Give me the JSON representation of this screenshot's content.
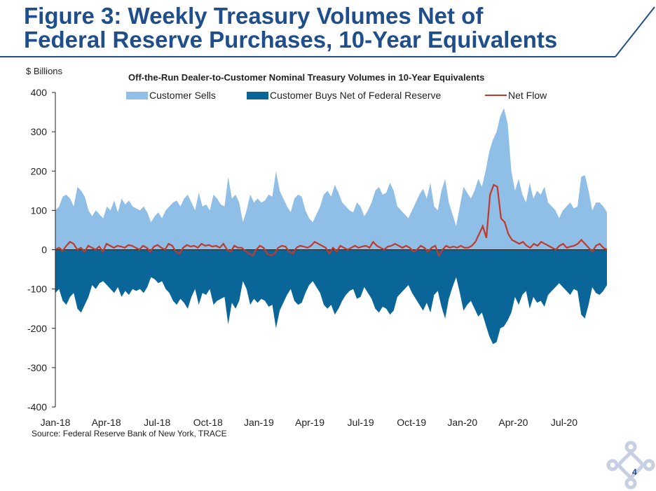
{
  "page": {
    "title_line1": "Figure 3: Weekly Treasury Volumes Net of",
    "title_line2": "Federal Reserve Purchases, 10-Year Equivalents",
    "source": "Source: Federal Reserve Bank of New York, TRACE",
    "page_number": "4",
    "colors": {
      "title": "#1f4e8c",
      "rule": "#1f4e8c"
    }
  },
  "chart_data": {
    "type": "area",
    "title": "Off-the-Run Dealer-to-Customer Nominal Treasury Volumes in 10-Year Equivalents",
    "ylabel": "$ Billions",
    "xlabel": "",
    "ylim": [
      -400,
      400
    ],
    "yticks": [
      400,
      300,
      200,
      100,
      0,
      -100,
      -200,
      -300,
      -400
    ],
    "ytick_labels": [
      "400",
      "300",
      "200",
      "100",
      "0",
      "-100",
      "-200",
      "-300",
      "-400"
    ],
    "xtick_labels": [
      "Jan-18",
      "Apr-18",
      "Jul-18",
      "Oct-18",
      "Jan-19",
      "Apr-19",
      "Jul-19",
      "Oct-19",
      "Jan-20",
      "Apr-20",
      "Jul-20"
    ],
    "grid": false,
    "legend_position": "top",
    "series": [
      {
        "name": "Customer Sells",
        "kind": "area",
        "color": "#8fbfe6",
        "values": [
          100,
          110,
          135,
          140,
          130,
          110,
          160,
          150,
          135,
          100,
          85,
          100,
          90,
          80,
          110,
          100,
          125,
          95,
          130,
          115,
          125,
          110,
          105,
          100,
          110,
          95,
          70,
          85,
          95,
          80,
          100,
          110,
          120,
          125,
          110,
          130,
          140,
          120,
          100,
          145,
          110,
          115,
          100,
          140,
          130,
          115,
          110,
          185,
          130,
          140,
          120,
          70,
          100,
          140,
          120,
          130,
          120,
          125,
          140,
          135,
          200,
          150,
          130,
          110,
          95,
          130,
          140,
          135,
          100,
          80,
          70,
          90,
          110,
          140,
          150,
          135,
          165,
          145,
          120,
          110,
          100,
          95,
          120,
          110,
          85,
          100,
          120,
          150,
          160,
          140,
          145,
          170,
          150,
          110,
          100,
          90,
          80,
          100,
          120,
          140,
          155,
          130,
          170,
          110,
          100,
          150,
          180,
          120,
          90,
          60,
          110,
          160,
          145,
          130,
          150,
          180,
          160,
          200,
          250,
          280,
          300,
          340,
          360,
          320,
          200,
          150,
          180,
          140,
          120,
          170,
          130,
          150,
          140,
          160,
          120,
          110,
          100,
          80,
          100,
          110,
          120,
          105,
          110,
          185,
          190,
          150,
          100,
          120,
          120,
          110,
          95
        ]
      },
      {
        "name": "Customer Buys Net of Federal Reserve",
        "kind": "area",
        "color": "#0a6699",
        "values": [
          -110,
          -100,
          -130,
          -140,
          -120,
          -110,
          -150,
          -160,
          -140,
          -120,
          -90,
          -100,
          -85,
          -80,
          -90,
          -100,
          -110,
          -95,
          -120,
          -105,
          -115,
          -100,
          -105,
          -100,
          -110,
          -95,
          -70,
          -75,
          -85,
          -80,
          -100,
          -110,
          -130,
          -140,
          -125,
          -135,
          -150,
          -120,
          -100,
          -140,
          -110,
          -115,
          -100,
          -140,
          -130,
          -125,
          -120,
          -190,
          -135,
          -150,
          -130,
          -80,
          -100,
          -140,
          -125,
          -135,
          -125,
          -130,
          -145,
          -140,
          -200,
          -155,
          -135,
          -115,
          -100,
          -130,
          -140,
          -135,
          -110,
          -90,
          -80,
          -95,
          -110,
          -140,
          -150,
          -140,
          -165,
          -150,
          -130,
          -115,
          -105,
          -100,
          -125,
          -120,
          -95,
          -110,
          -125,
          -150,
          -160,
          -145,
          -150,
          -165,
          -155,
          -120,
          -110,
          -100,
          -90,
          -110,
          -125,
          -140,
          -155,
          -135,
          -160,
          -115,
          -105,
          -145,
          -175,
          -125,
          -95,
          -70,
          -110,
          -155,
          -140,
          -130,
          -150,
          -170,
          -160,
          -190,
          -220,
          -240,
          -235,
          -200,
          -195,
          -180,
          -160,
          -120,
          -140,
          -115,
          -105,
          -150,
          -120,
          -135,
          -130,
          -145,
          -115,
          -105,
          -95,
          -85,
          -95,
          -105,
          -115,
          -100,
          -105,
          -165,
          -175,
          -140,
          -95,
          -110,
          -115,
          -105,
          -90
        ]
      },
      {
        "name": "Net Flow",
        "kind": "line",
        "color": "#c0392b",
        "values": [
          0,
          5,
          -3,
          10,
          20,
          15,
          0,
          5,
          -5,
          10,
          5,
          0,
          8,
          -5,
          15,
          10,
          5,
          10,
          8,
          5,
          12,
          10,
          5,
          0,
          10,
          5,
          -5,
          8,
          12,
          5,
          0,
          15,
          10,
          -5,
          -10,
          5,
          12,
          8,
          10,
          5,
          15,
          10,
          12,
          8,
          10,
          5,
          15,
          0,
          -5,
          10,
          5,
          5,
          -3,
          -10,
          -15,
          0,
          10,
          5,
          -10,
          -15,
          -10,
          5,
          10,
          8,
          -5,
          -10,
          5,
          10,
          8,
          5,
          10,
          20,
          15,
          10,
          5,
          -10,
          5,
          -5,
          10,
          5,
          0,
          5,
          10,
          5,
          8,
          10,
          5,
          20,
          10,
          5,
          0,
          8,
          10,
          15,
          10,
          5,
          10,
          5,
          -5,
          0,
          10,
          5,
          -5,
          5,
          10,
          -15,
          0,
          10,
          5,
          8,
          5,
          10,
          5,
          5,
          10,
          20,
          40,
          60,
          30,
          140,
          165,
          160,
          80,
          70,
          40,
          25,
          20,
          15,
          20,
          10,
          5,
          15,
          10,
          20,
          15,
          10,
          5,
          0,
          10,
          15,
          5,
          8,
          10,
          15,
          25,
          15,
          5,
          -5,
          10,
          15,
          5,
          0
        ]
      }
    ]
  }
}
